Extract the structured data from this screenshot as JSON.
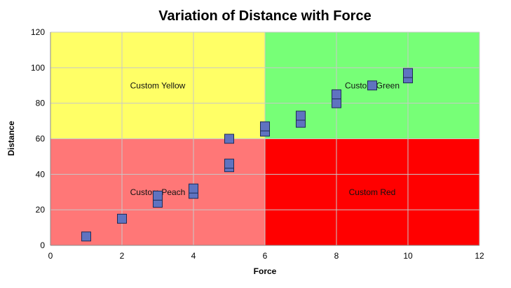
{
  "chart_data": {
    "type": "scatter",
    "title": "Variation of Distance with Force",
    "xlabel": "Force",
    "ylabel": "Distance",
    "xlim": [
      0,
      12
    ],
    "ylim": [
      0,
      120
    ],
    "x_ticks": [
      0,
      2,
      4,
      6,
      8,
      10,
      12
    ],
    "y_ticks": [
      0,
      20,
      40,
      60,
      80,
      100,
      120
    ],
    "grid": true,
    "marker": "square",
    "marker_color": "#5f73c0",
    "series": [
      {
        "points": [
          {
            "x": 1,
            "y": 5
          },
          {
            "x": 2,
            "y": 15
          },
          {
            "x": 3,
            "y": 24
          },
          {
            "x": 3,
            "y": 28
          },
          {
            "x": 4,
            "y": 29
          },
          {
            "x": 4,
            "y": 32
          },
          {
            "x": 5,
            "y": 44
          },
          {
            "x": 5,
            "y": 46
          },
          {
            "x": 5,
            "y": 60
          },
          {
            "x": 6,
            "y": 64
          },
          {
            "x": 6,
            "y": 67
          },
          {
            "x": 7,
            "y": 69
          },
          {
            "x": 7,
            "y": 73
          },
          {
            "x": 8,
            "y": 80
          },
          {
            "x": 8,
            "y": 85
          },
          {
            "x": 9,
            "y": 90
          },
          {
            "x": 10,
            "y": 94
          },
          {
            "x": 10,
            "y": 97
          }
        ]
      }
    ],
    "zones": [
      {
        "label": "Custom Yellow",
        "color": "#ffff66",
        "x": [
          0,
          6
        ],
        "y": [
          60,
          120
        ],
        "label_at": {
          "x": 3,
          "y": 90
        }
      },
      {
        "label": "Custom Green",
        "color": "#77ff77",
        "x": [
          6,
          12
        ],
        "y": [
          60,
          120
        ],
        "label_at": {
          "x": 9,
          "y": 90
        }
      },
      {
        "label": "Custom Peach",
        "color": "#ff7777",
        "x": [
          0,
          6
        ],
        "y": [
          0,
          60
        ],
        "label_at": {
          "x": 3,
          "y": 30
        }
      },
      {
        "label": "Custom Red",
        "color": "#ff0000",
        "x": [
          6,
          12
        ],
        "y": [
          0,
          60
        ],
        "label_at": {
          "x": 9,
          "y": 30
        }
      }
    ]
  }
}
